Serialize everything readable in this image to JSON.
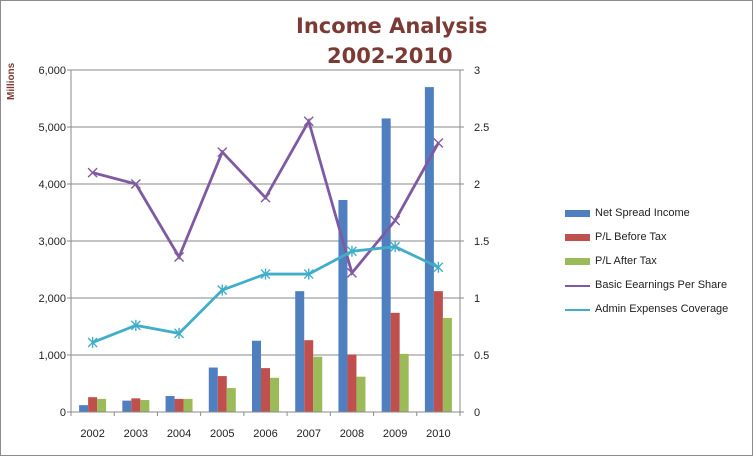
{
  "chart_data": {
    "type": "bar",
    "title_line1": "Income Analysis",
    "title_line2": "2002-2010",
    "ylabel": "Millions",
    "categories": [
      "2002",
      "2003",
      "2004",
      "2005",
      "2006",
      "2007",
      "2008",
      "2009",
      "2010"
    ],
    "y_left": {
      "min": 0,
      "max": 6000,
      "ticks": [
        0,
        1000,
        2000,
        3000,
        4000,
        5000,
        6000
      ],
      "tick_labels": [
        "0",
        "1,000",
        "2,000",
        "3,000",
        "4,000",
        "5,000",
        "6,000"
      ]
    },
    "y_right": {
      "min": 0,
      "max": 3,
      "ticks": [
        0,
        0.5,
        1,
        1.5,
        2,
        2.5,
        3
      ],
      "tick_labels": [
        "0",
        "0.5",
        "1",
        "1.5",
        "2",
        "2.5",
        "3"
      ]
    },
    "grid": true,
    "legend_position": "right",
    "bar_series": [
      {
        "name": "Net Spread Income",
        "color": "#4f7fbf",
        "axis": "left",
        "values": [
          120,
          200,
          280,
          780,
          1250,
          2120,
          3720,
          5150,
          5700
        ]
      },
      {
        "name": "P/L Before Tax",
        "color": "#c0504d",
        "axis": "left",
        "values": [
          260,
          240,
          230,
          630,
          770,
          1260,
          1010,
          1740,
          2120
        ]
      },
      {
        "name": "P/L After Tax",
        "color": "#9bbb59",
        "axis": "left",
        "values": [
          230,
          210,
          230,
          420,
          600,
          970,
          620,
          1020,
          1650
        ]
      }
    ],
    "line_series": [
      {
        "name": "Basic Eearnings Per Share",
        "color": "#7f5aa2",
        "axis": "right",
        "marker": "x",
        "values": [
          2.1,
          2.0,
          1.36,
          2.28,
          1.88,
          2.55,
          1.22,
          1.68,
          2.36
        ]
      },
      {
        "name": "Admin Expenses Coverage",
        "color": "#40aec8",
        "axis": "right",
        "marker": "asterisk",
        "values": [
          0.61,
          0.76,
          0.69,
          1.07,
          1.21,
          1.21,
          1.41,
          1.45,
          1.27
        ]
      }
    ]
  }
}
